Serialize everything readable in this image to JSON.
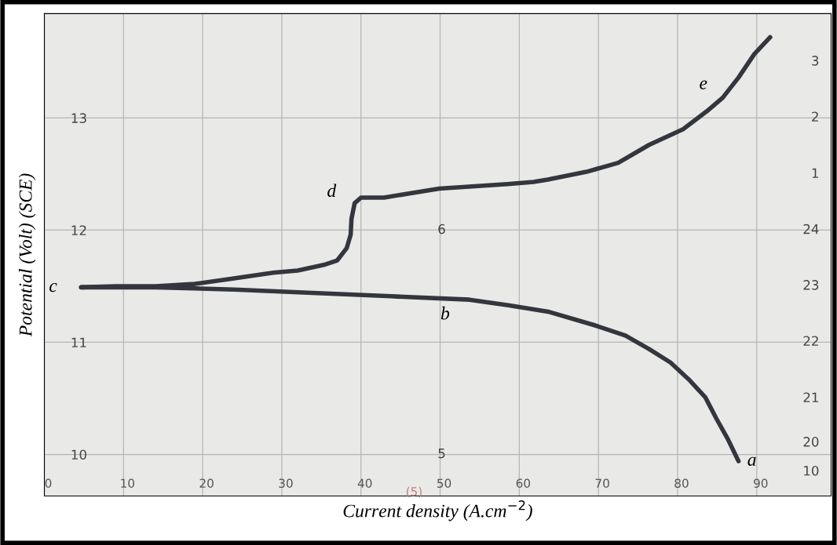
{
  "chart_data": {
    "type": "line",
    "xlabel": "Current density (A.cm$^{−2}$)",
    "ylabel": "Potential (Volt) (SCE)",
    "xlim": [
      0,
      99.4
    ],
    "xticks": [
      0,
      10,
      20,
      30,
      40,
      50,
      60,
      70,
      80,
      90
    ],
    "ylim": [
      9.63,
      13.93
    ],
    "yticks": [
      10,
      11,
      12,
      13
    ],
    "grid": true,
    "legend": false,
    "marker": "none",
    "line_style": "solid",
    "series": [
      {
        "color": "#33363d",
        "x": [
          4.65,
          9.1,
          14.06,
          19.0,
          23.96,
          28.9,
          32.0,
          35.3,
          37.0,
          38.2,
          38.7,
          38.8,
          39.2,
          40.0,
          42.9,
          49.9,
          58.5,
          61.8,
          63.6,
          68.5,
          72.5,
          76.4,
          80.7,
          83.7,
          85.7,
          87.7,
          89.7,
          91.7
        ],
        "values": [
          11.49,
          11.5,
          11.5,
          11.52,
          11.57,
          11.62,
          11.64,
          11.69,
          11.73,
          11.84,
          11.96,
          12.1,
          12.24,
          12.29,
          12.29,
          12.37,
          12.41,
          12.43,
          12.45,
          12.52,
          12.6,
          12.76,
          12.9,
          13.06,
          13.18,
          13.36,
          13.57,
          13.72
        ]
      },
      {
        "color": "#33363d",
        "x": [
          4.65,
          14.06,
          23.96,
          33.86,
          43.8,
          53.7,
          58.6,
          63.8,
          69.6,
          73.4,
          76.4,
          79.1,
          81.4,
          83.5,
          84.9,
          86.4,
          87.7
        ],
        "values": [
          11.49,
          11.49,
          11.47,
          11.44,
          11.41,
          11.38,
          11.33,
          11.27,
          11.15,
          11.06,
          10.94,
          10.82,
          10.67,
          10.51,
          10.32,
          10.13,
          9.94
        ]
      }
    ],
    "annotations": [
      {
        "text": "a",
        "x": 87.7,
        "y": 9.94
      },
      {
        "text": "b",
        "x": 53.7,
        "y": 11.38
      },
      {
        "text": "c",
        "x": 4.65,
        "y": 11.49
      },
      {
        "text": "d",
        "x": 38.8,
        "y": 12.24
      },
      {
        "text": "e",
        "x": 85.7,
        "y": 13.18
      },
      "10",
      "20",
      "21",
      "22",
      "23",
      "24",
      "1",
      "2",
      "3",
      "5",
      "6",
      "(5)"
    ]
  }
}
